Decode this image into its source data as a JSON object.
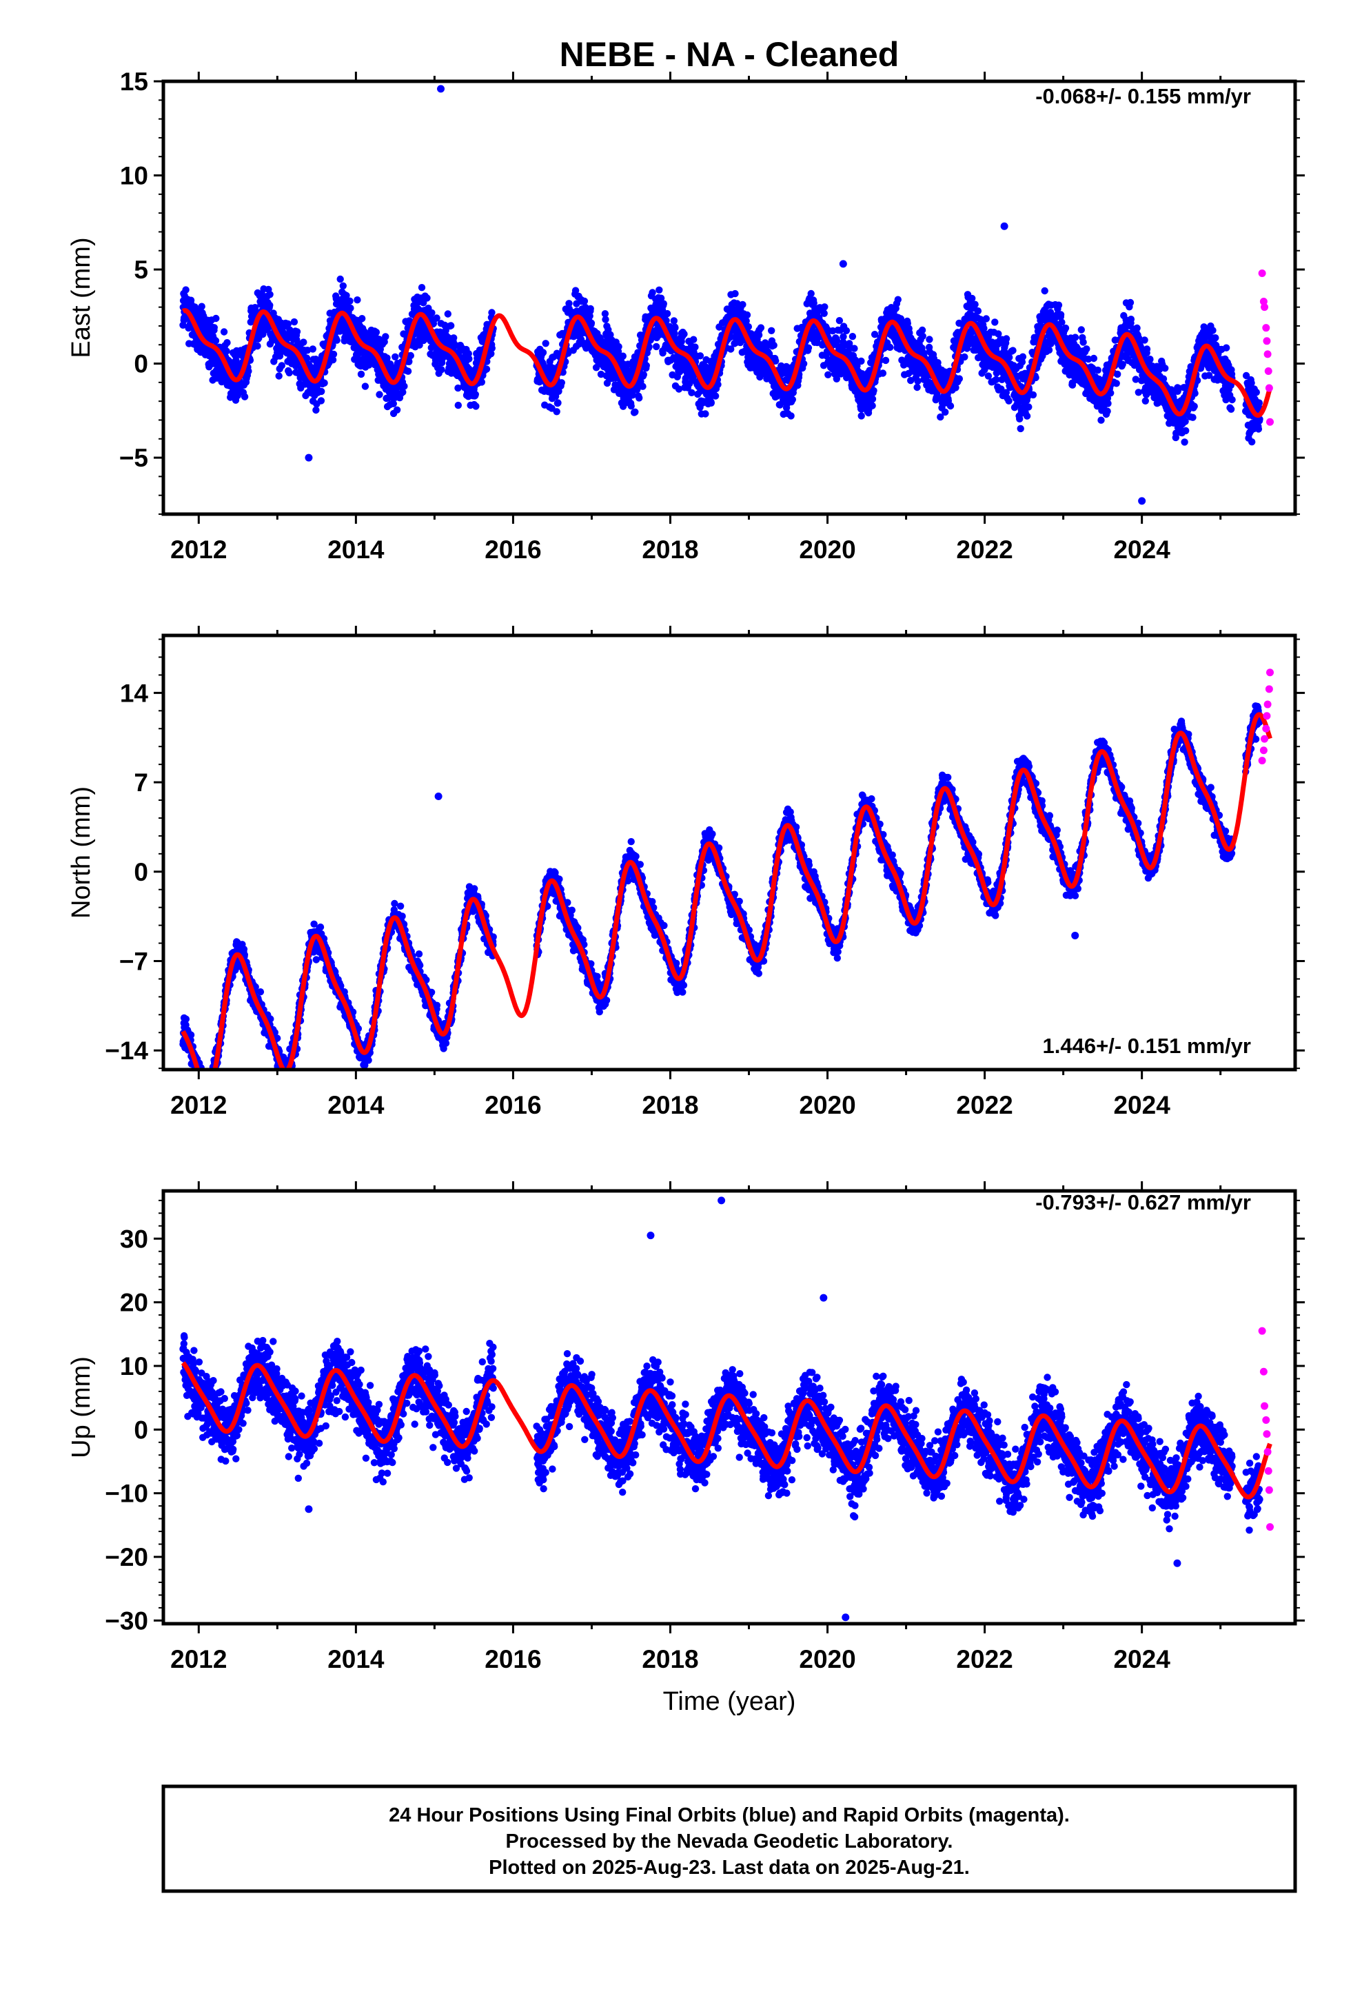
{
  "title": "NEBE  - NA - Cleaned",
  "footer": {
    "line1": "24 Hour Positions Using Final Orbits (blue) and Rapid Orbits (magenta).",
    "line2": "Processed by the Nevada Geodetic Laboratory.",
    "line3": "Plotted on 2025-Aug-23. Last data on 2025-Aug-21."
  },
  "colors": {
    "final_orbits": "#0000ff",
    "rapid_orbits": "#ff00ff",
    "model": "#ff0000"
  },
  "chart_data": [
    {
      "type": "scatter",
      "ylabel": "East (mm)",
      "xlabel": "",
      "rate_label": "-0.068+/- 0.155 mm/yr",
      "xlim": [
        2011.55,
        2025.95
      ],
      "ylim": [
        -8,
        15
      ],
      "xticks": [
        2012,
        2014,
        2016,
        2018,
        2020,
        2022,
        2024
      ],
      "yticks": [
        -5,
        0,
        5,
        10,
        15
      ],
      "grid": false,
      "series": [
        {
          "key": "final",
          "segments": [
            [
              2011.8,
              2015.75
            ],
            [
              2016.3,
              2025.15
            ],
            [
              2025.32,
              2025.5
            ]
          ]
        },
        {
          "key": "rapid",
          "range": [
            2025.5,
            2025.63
          ]
        },
        {
          "key": "model",
          "segments": [
            [
              2011.8,
              2025.63
            ]
          ]
        }
      ],
      "model": {
        "offset": 1.0,
        "rate": -0.068,
        "annual_amplitude": 1.5,
        "annual_phase_year": 2011.65,
        "semiannual_amplitude": 0.6,
        "pre2023_level": 0.0
      },
      "data_spread": 1.3,
      "outliers": [
        {
          "x": 2015.08,
          "y": 14.6
        },
        {
          "x": 2022.25,
          "y": 7.3
        },
        {
          "x": 2013.4,
          "y": -5.0
        },
        {
          "x": 2020.2,
          "y": 5.3
        },
        {
          "x": 2024.0,
          "y": -7.3
        }
      ],
      "rapid_points": [
        [
          2025.53,
          4.8
        ],
        [
          2025.55,
          3.3
        ],
        [
          2025.56,
          3.0
        ],
        [
          2025.58,
          1.9
        ],
        [
          2025.59,
          1.2
        ],
        [
          2025.6,
          0.5
        ],
        [
          2025.61,
          -0.4
        ],
        [
          2025.62,
          -1.3
        ],
        [
          2025.63,
          -3.1
        ]
      ]
    },
    {
      "type": "scatter",
      "ylabel": "North (mm)",
      "xlabel": "",
      "rate_label": "1.446+/- 0.151 mm/yr",
      "xlim": [
        2011.55,
        2025.95
      ],
      "ylim": [
        -15.5,
        18.5
      ],
      "xticks": [
        2012,
        2014,
        2016,
        2018,
        2020,
        2022,
        2024
      ],
      "yticks": [
        -14,
        -7,
        0,
        7,
        14
      ],
      "grid": false,
      "series": [
        {
          "key": "final",
          "segments": [
            [
              2011.8,
              2015.75
            ],
            [
              2016.3,
              2025.15
            ],
            [
              2025.32,
              2025.5
            ]
          ]
        },
        {
          "key": "rapid",
          "range": [
            2025.5,
            2025.63
          ]
        },
        {
          "key": "model",
          "segments": [
            [
              2011.8,
              2025.63
            ]
          ]
        }
      ],
      "model": {
        "offset": -12.5,
        "rate": 1.446,
        "annual_amplitude": 4.5,
        "annual_phase_year": 2012.3,
        "semiannual_amplitude": 1.2
      },
      "data_spread": 1.0,
      "outliers": [
        {
          "x": 2015.05,
          "y": 5.9
        },
        {
          "x": 2023.15,
          "y": -5.0
        },
        {
          "x": 2019.05,
          "y": -7.0
        }
      ],
      "rapid_points": [
        [
          2025.53,
          8.7
        ],
        [
          2025.55,
          9.5
        ],
        [
          2025.56,
          10.4
        ],
        [
          2025.58,
          11.2
        ],
        [
          2025.59,
          12.2
        ],
        [
          2025.6,
          13.1
        ],
        [
          2025.62,
          14.3
        ],
        [
          2025.63,
          15.6
        ]
      ]
    },
    {
      "type": "scatter",
      "ylabel": "Up (mm)",
      "xlabel": "Time (year)",
      "rate_label": "-0.793+/- 0.627 mm/yr",
      "xlim": [
        2011.55,
        2025.95
      ],
      "ylim": [
        -30.5,
        37.5
      ],
      "xticks": [
        2012,
        2014,
        2016,
        2018,
        2020,
        2022,
        2024
      ],
      "yticks": [
        -30,
        -20,
        -10,
        0,
        10,
        20,
        30
      ],
      "grid": false,
      "series": [
        {
          "key": "final",
          "segments": [
            [
              2011.8,
              2015.75
            ],
            [
              2016.3,
              2025.15
            ],
            [
              2025.32,
              2025.5
            ]
          ]
        },
        {
          "key": "rapid",
          "range": [
            2025.5,
            2025.63
          ]
        },
        {
          "key": "model",
          "segments": [
            [
              2011.8,
              2025.63
            ]
          ]
        }
      ],
      "model": {
        "offset": 5.5,
        "rate": -0.793,
        "annual_amplitude": 5.0,
        "annual_phase_year": 2011.55,
        "semiannual_amplitude": 1.0
      },
      "data_spread": 4.5,
      "outliers": [
        {
          "x": 2018.65,
          "y": 36.0
        },
        {
          "x": 2017.75,
          "y": 30.5
        },
        {
          "x": 2020.23,
          "y": -29.5
        },
        {
          "x": 2013.4,
          "y": -12.5
        },
        {
          "x": 2024.45,
          "y": -21.0
        },
        {
          "x": 2019.95,
          "y": 20.7
        }
      ],
      "rapid_points": [
        [
          2025.53,
          15.5
        ],
        [
          2025.55,
          9.1
        ],
        [
          2025.56,
          3.7
        ],
        [
          2025.58,
          1.5
        ],
        [
          2025.59,
          -0.7
        ],
        [
          2025.6,
          -3.5
        ],
        [
          2025.61,
          -6.5
        ],
        [
          2025.62,
          -9.5
        ],
        [
          2025.63,
          -15.3
        ]
      ]
    }
  ]
}
